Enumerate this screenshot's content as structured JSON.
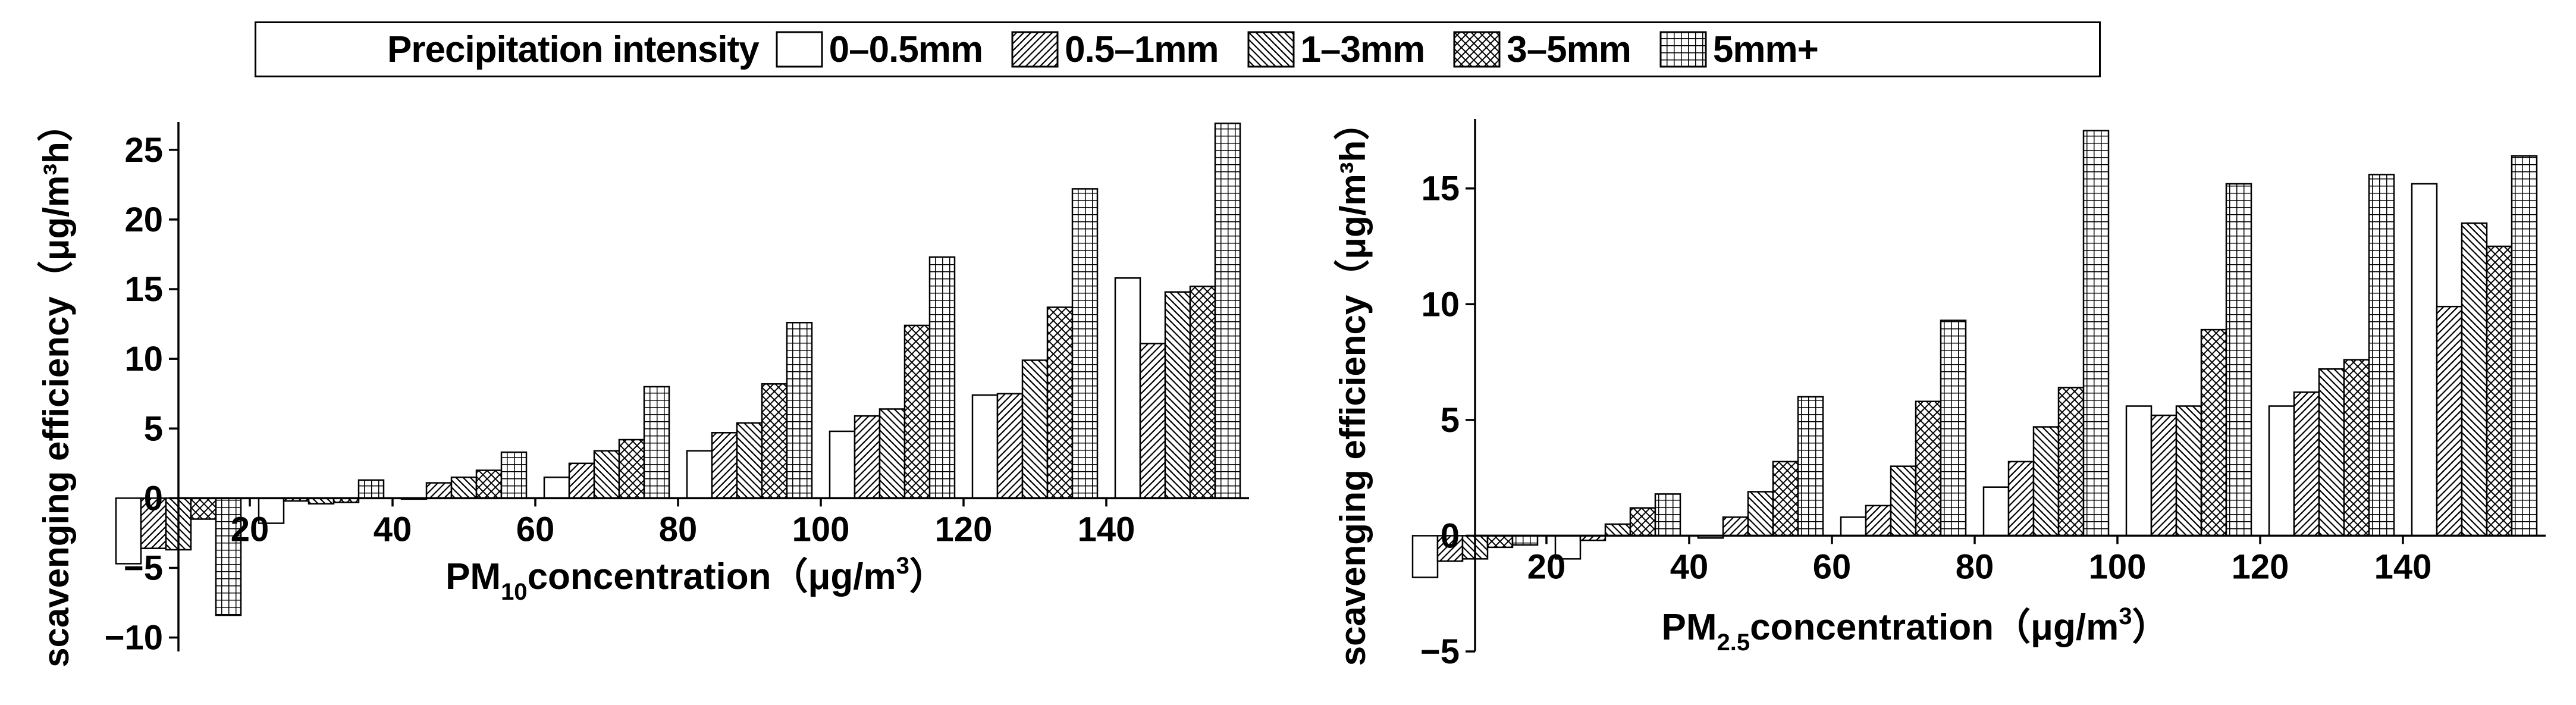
{
  "legend": {
    "title": "Precipitation intensity",
    "items": [
      {
        "label": "0–0.5mm",
        "pattern": "blank"
      },
      {
        "label": "0.5–1mm",
        "pattern": "diag-up"
      },
      {
        "label": "1–3mm",
        "pattern": "diag-down"
      },
      {
        "label": "3–5mm",
        "pattern": "crosshatch"
      },
      {
        "label": "5mm+",
        "pattern": "grid"
      }
    ]
  },
  "chart_data": [
    {
      "type": "bar",
      "title": "",
      "xlabel": {
        "prefix": "PM",
        "sub": "10",
        "rest": "concentration（μg/m",
        "sup": "3",
        "end": "）"
      },
      "ylabel": "scavenging efficiency（μg/m³h）",
      "xlim": [
        10,
        160
      ],
      "ylim": [
        -11,
        27
      ],
      "xticks": [
        20,
        40,
        60,
        80,
        100,
        120,
        140
      ],
      "yticks": [
        -10,
        -5,
        0,
        5,
        10,
        15,
        20,
        25
      ],
      "categories": [
        10,
        30,
        50,
        70,
        90,
        110,
        130,
        150
      ],
      "series": [
        {
          "name": "0–0.5mm",
          "values": [
            -4.7,
            -1.8,
            0.0,
            1.5,
            3.4,
            4.8,
            7.4,
            15.8
          ]
        },
        {
          "name": "0.5–1mm",
          "values": [
            -3.6,
            -0.2,
            1.1,
            2.5,
            4.7,
            5.9,
            7.5,
            11.1
          ]
        },
        {
          "name": "1–3mm",
          "values": [
            -3.7,
            -0.4,
            1.5,
            3.4,
            5.4,
            6.4,
            9.9,
            14.8
          ]
        },
        {
          "name": "3–5mm",
          "values": [
            -1.5,
            -0.3,
            2.0,
            4.2,
            8.2,
            12.4,
            13.7,
            15.2
          ]
        },
        {
          "name": "5mm+",
          "values": [
            -8.4,
            1.3,
            3.3,
            8.0,
            12.6,
            17.3,
            22.2,
            26.9
          ]
        }
      ]
    },
    {
      "type": "bar",
      "title": "",
      "xlabel": {
        "prefix": "PM",
        "sub": "2.5",
        "rest": "concentration（μg/m",
        "sup": "3",
        "end": "）"
      },
      "ylabel": "scavenging efficiency（μg/m³h）",
      "xlim": [
        10,
        160
      ],
      "ylim": [
        -5,
        18
      ],
      "xticks": [
        20,
        40,
        60,
        80,
        100,
        120,
        140
      ],
      "yticks": [
        -5,
        0,
        5,
        10,
        15
      ],
      "categories": [
        10,
        30,
        50,
        70,
        90,
        110,
        130,
        150
      ],
      "series": [
        {
          "name": "0–0.5mm",
          "values": [
            -1.8,
            -1.0,
            -0.1,
            0.8,
            2.1,
            5.6,
            5.6,
            15.2
          ]
        },
        {
          "name": "0.5–1mm",
          "values": [
            -1.1,
            -0.2,
            0.8,
            1.3,
            3.2,
            5.2,
            6.2,
            9.9
          ]
        },
        {
          "name": "1–3mm",
          "values": [
            -1.0,
            0.5,
            1.9,
            3.0,
            4.7,
            5.6,
            7.2,
            13.5
          ]
        },
        {
          "name": "3–5mm",
          "values": [
            -0.5,
            1.2,
            3.2,
            5.8,
            6.4,
            8.9,
            7.6,
            12.5
          ]
        },
        {
          "name": "5mm+",
          "values": [
            -0.4,
            1.8,
            6.0,
            9.3,
            17.5,
            15.2,
            15.6,
            16.4
          ]
        }
      ]
    }
  ]
}
